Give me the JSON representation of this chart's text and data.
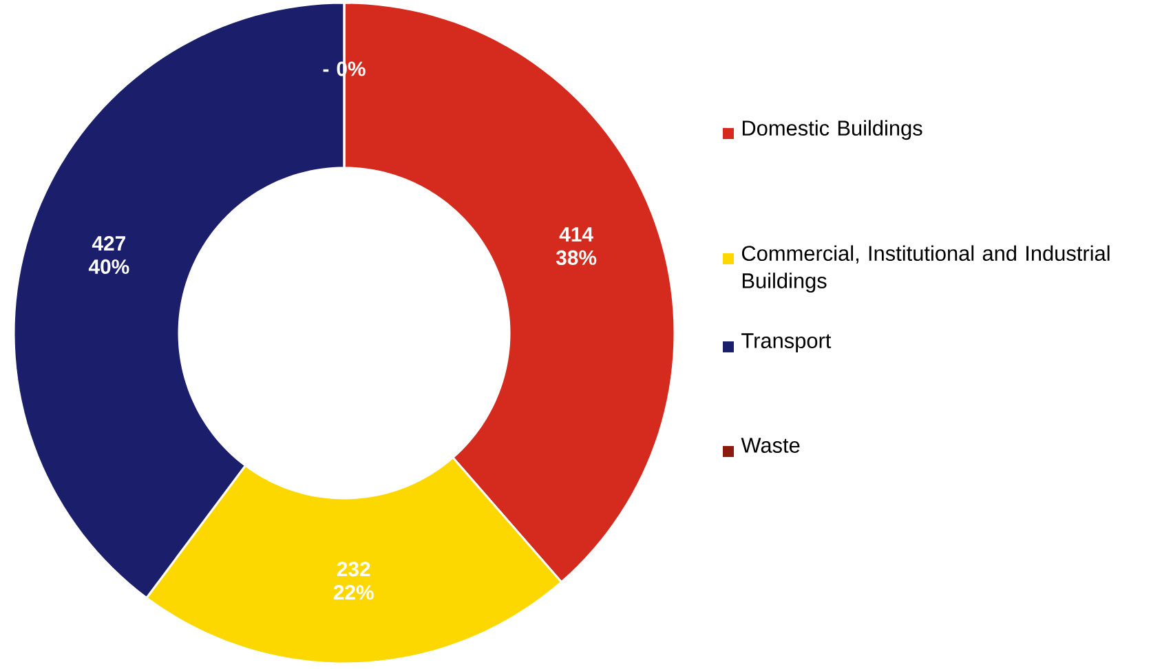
{
  "chart_data": {
    "type": "donut",
    "categories": [
      "Domestic Buildings",
      "Commercial, Institutional and Industrial Buildings",
      "Transport",
      "Waste"
    ],
    "values": [
      414,
      232,
      427,
      0
    ],
    "value_labels": [
      "414 38%",
      "232 22%",
      "427 40%",
      "- 0%"
    ],
    "colors": [
      "#d52b1e",
      "#fdd800",
      "#1b1f6b",
      "#8b1a10"
    ],
    "legend": "right"
  }
}
